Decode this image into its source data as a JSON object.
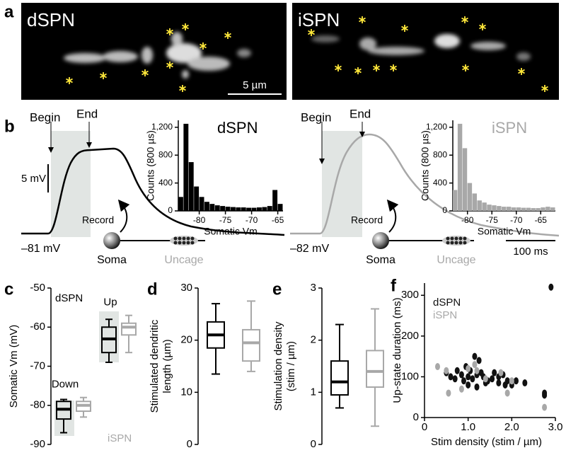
{
  "panel_labels": [
    "a",
    "b",
    "c",
    "d",
    "e",
    "f"
  ],
  "images": [
    {
      "title": "dSPN"
    },
    {
      "title": "iSPN"
    }
  ],
  "scale_bar": "5 µm",
  "b_left": {
    "begin": "Begin",
    "end": "End",
    "scale": "5 mV",
    "baseline": "–81 mV",
    "record": "Record",
    "soma": "Soma",
    "uncage": "Uncage"
  },
  "b_right": {
    "begin": "Begin",
    "end": "End",
    "baseline": "–82 mV",
    "record": "Record",
    "soma": "Soma",
    "uncage": "Uncage",
    "time_scale": "100 ms"
  },
  "chart_data": [
    {
      "type": "histogram",
      "title": "dSPN",
      "color": "#000000",
      "xlabel": "Somatic Vm",
      "ylabel": "Counts (800 µs)",
      "bins": [
        -84,
        -83,
        -82,
        -81,
        -80,
        -79,
        -78,
        -77,
        -76,
        -75,
        -74,
        -73,
        -72,
        -71,
        -70,
        -69,
        -68,
        -67,
        -66,
        -65,
        -64
      ],
      "values": [
        200,
        1250,
        700,
        350,
        200,
        130,
        100,
        80,
        70,
        60,
        55,
        50,
        50,
        45,
        45,
        50,
        55,
        70,
        300,
        100
      ],
      "xlim": [
        -84,
        -64
      ],
      "xticks": [
        -80,
        -75,
        -70,
        -65
      ],
      "ylim": [
        0,
        1300
      ],
      "yticks": [
        0,
        400,
        800,
        {
          "value": 1200,
          "label": "1,200"
        }
      ]
    },
    {
      "type": "histogram",
      "title": "iSPN",
      "color": "#a8a8a8",
      "xlabel": "Somatic Vm",
      "ylabel": "Counts (800 µs)",
      "bins": [
        -83,
        -82,
        -81,
        -80,
        -79,
        -78,
        -77,
        -76,
        -75,
        -74,
        -73,
        -72,
        -71,
        -70,
        -69,
        -68,
        -67,
        -66,
        -65,
        -64,
        -63,
        -62
      ],
      "values": [
        300,
        1250,
        900,
        400,
        250,
        150,
        120,
        90,
        80,
        70,
        60,
        60,
        50,
        50,
        45,
        45,
        40,
        40,
        50,
        60,
        50
      ],
      "xlim": [
        -83,
        -62
      ],
      "xticks": [
        -80,
        -75,
        -70,
        -65
      ],
      "ylim": [
        0,
        1300
      ],
      "yticks": [
        0,
        400,
        800,
        {
          "value": 1200,
          "label": "1,200"
        }
      ]
    },
    {
      "type": "box",
      "ylabel": "Somatic Vm (mV)",
      "categories": [
        "Down",
        "Up"
      ],
      "series": [
        {
          "name": "dSPN",
          "color": "#000000",
          "values": [
            [
              -87,
              -83.5,
              -81,
              -79,
              -78.5
            ],
            [
              -69,
              -66.5,
              -63,
              -60,
              -58
            ]
          ]
        },
        {
          "name": "iSPN",
          "color": "#a8a8a8",
          "values": [
            [
              -83,
              -81.5,
              -80,
              -79,
              -78
            ],
            [
              -66.5,
              -62,
              -60,
              -59,
              -57
            ]
          ]
        }
      ],
      "ylim": [
        -90,
        -50
      ],
      "yticks": [
        -90,
        -80,
        -70,
        -60,
        -50
      ]
    },
    {
      "type": "box",
      "ylabel": [
        "Stimulated dendritic",
        "length (µm)"
      ],
      "series": [
        {
          "color": "#000000",
          "values": [
            [
              13.5,
              18.5,
              21,
              23.5,
              27
            ]
          ]
        },
        {
          "color": "#a8a8a8",
          "values": [
            [
              14,
              16,
              19.5,
              22,
              27.5
            ]
          ]
        }
      ],
      "ylim": [
        0,
        30
      ],
      "yticks": [
        0,
        10,
        20,
        30
      ]
    },
    {
      "type": "box",
      "ylabel": [
        "Stimulation density",
        "(stim / µm)"
      ],
      "series": [
        {
          "color": "#000000",
          "values": [
            [
              0.7,
              0.95,
              1.2,
              1.6,
              2.3
            ]
          ]
        },
        {
          "color": "#a8a8a8",
          "values": [
            [
              0.35,
              1.1,
              1.4,
              1.8,
              2.6
            ]
          ]
        }
      ],
      "ylim": [
        0,
        3
      ],
      "yticks": [
        0,
        1,
        2,
        3
      ]
    },
    {
      "type": "scatter",
      "xlabel": "Stim density (stim / µm)",
      "ylabel": "Up-state duration (ms)",
      "series": [
        {
          "name": "dSPN",
          "color": "#111111",
          "x": [
            0.5,
            0.6,
            0.7,
            0.75,
            0.85,
            0.9,
            1.0,
            1.0,
            1.05,
            1.1,
            1.15,
            1.2,
            1.2,
            1.3,
            1.35,
            1.4,
            1.45,
            1.55,
            1.6,
            1.7,
            1.8,
            1.85,
            1.9,
            2.0,
            2.1,
            2.3,
            2.75,
            2.75,
            2.9,
            0.95,
            1.25,
            1.7
          ],
          "values": [
            110,
            100,
            95,
            115,
            105,
            90,
            100,
            80,
            115,
            95,
            150,
            105,
            75,
            110,
            100,
            85,
            90,
            95,
            110,
            100,
            105,
            80,
            90,
            80,
            90,
            85,
            55,
            60,
            320,
            125,
            140,
            85
          ]
        },
        {
          "name": "iSPN",
          "color": "#a8a8a8",
          "x": [
            0.3,
            0.5,
            0.55,
            0.85,
            1.0,
            1.2,
            1.4,
            1.75,
            1.9,
            2.0,
            2.75,
            1.15
          ],
          "values": [
            125,
            115,
            60,
            70,
            120,
            115,
            95,
            110,
            60,
            90,
            25,
            130
          ]
        }
      ],
      "xlim": [
        0,
        3
      ],
      "xticks": [
        0,
        {
          "value": 1,
          "label": "1.0"
        },
        {
          "value": 2,
          "label": "2.0"
        },
        {
          "value": 3,
          "label": "3.0"
        }
      ],
      "ylim": [
        0,
        330
      ],
      "yticks": [
        0,
        100,
        200,
        300
      ]
    }
  ]
}
